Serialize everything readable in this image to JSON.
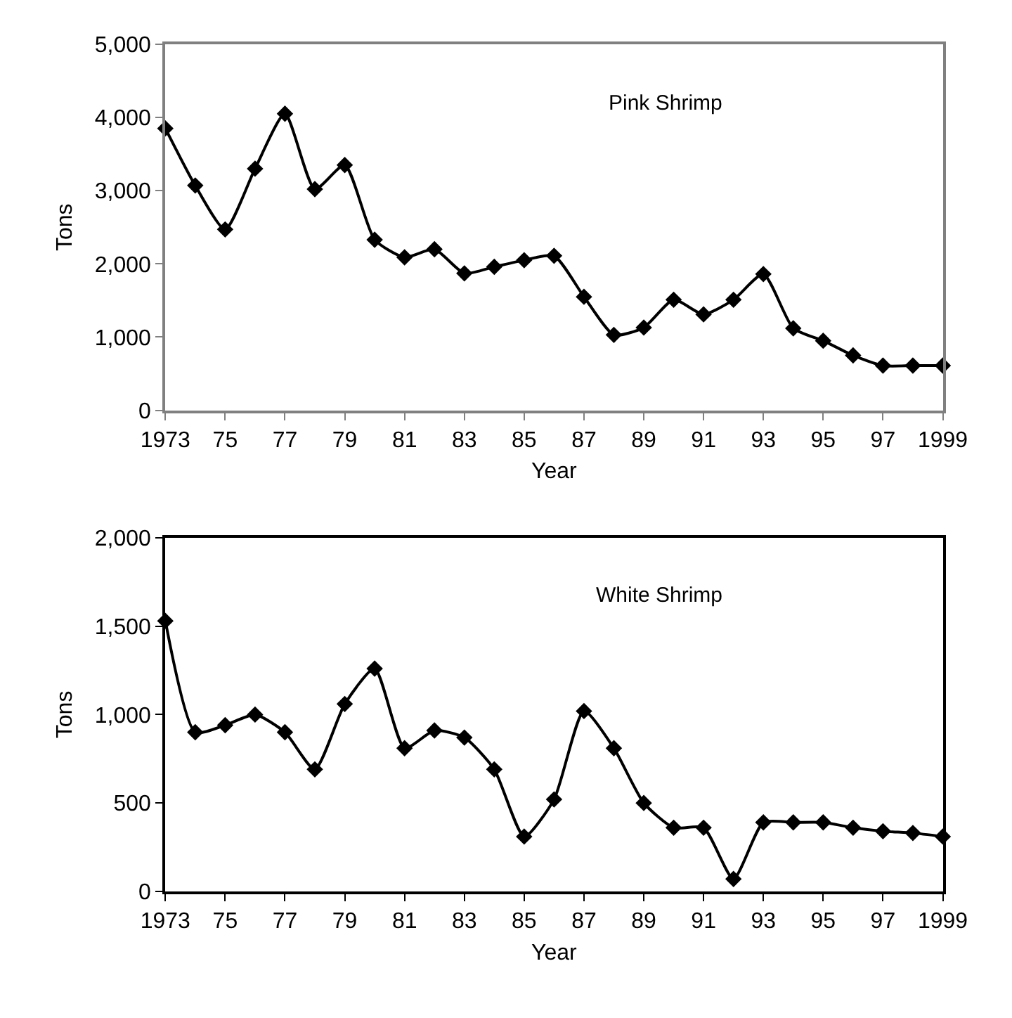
{
  "chart_data": [
    {
      "type": "line",
      "title": "Pink Shrimp",
      "xlabel": "Year",
      "ylabel": "Tons",
      "marker": "diamond",
      "line_style": "solid",
      "x": [
        1973,
        1974,
        1975,
        1976,
        1977,
        1978,
        1979,
        1980,
        1981,
        1982,
        1983,
        1984,
        1985,
        1986,
        1987,
        1988,
        1989,
        1990,
        1991,
        1992,
        1993,
        1994,
        1995,
        1996,
        1997,
        1998,
        1999
      ],
      "series": [
        {
          "color": "#000000",
          "values": [
            3850,
            3070,
            2470,
            3300,
            4050,
            3020,
            3350,
            2330,
            2090,
            2200,
            1870,
            1960,
            2050,
            2110,
            1550,
            1030,
            1130,
            1510,
            1310,
            1510,
            1860,
            1120,
            950,
            750,
            610,
            610,
            610
          ]
        }
      ],
      "xlim": [
        1973,
        1999
      ],
      "xticks": [
        1973,
        {
          "value": 1975,
          "label": "75"
        },
        {
          "value": 1977,
          "label": "77"
        },
        {
          "value": 1979,
          "label": "79"
        },
        {
          "value": 1981,
          "label": "81"
        },
        {
          "value": 1983,
          "label": "83"
        },
        {
          "value": 1985,
          "label": "85"
        },
        {
          "value": 1987,
          "label": "87"
        },
        {
          "value": 1989,
          "label": "89"
        },
        {
          "value": 1991,
          "label": "91"
        },
        {
          "value": 1993,
          "label": "93"
        },
        {
          "value": 1995,
          "label": "95"
        },
        {
          "value": 1997,
          "label": "97"
        },
        1999
      ],
      "ylim": [
        0,
        5000
      ],
      "yticks": [
        0,
        {
          "value": 1000,
          "label": "1,000"
        },
        {
          "value": 2000,
          "label": "2,000"
        },
        {
          "value": 3000,
          "label": "3,000"
        },
        {
          "value": 4000,
          "label": "4,000"
        },
        {
          "value": 5000,
          "label": "5,000"
        }
      ]
    },
    {
      "type": "line",
      "title": "White Shrimp",
      "xlabel": "Year",
      "ylabel": "Tons",
      "marker": "diamond",
      "line_style": "solid",
      "x": [
        1973,
        1974,
        1975,
        1976,
        1977,
        1978,
        1979,
        1980,
        1981,
        1982,
        1983,
        1984,
        1985,
        1986,
        1987,
        1988,
        1989,
        1990,
        1991,
        1992,
        1993,
        1994,
        1995,
        1996,
        1997,
        1998,
        1999
      ],
      "series": [
        {
          "color": "#000000",
          "values": [
            1530,
            900,
            940,
            1000,
            900,
            690,
            1060,
            1260,
            810,
            910,
            870,
            690,
            310,
            520,
            1020,
            810,
            500,
            360,
            360,
            70,
            390,
            390,
            390,
            360,
            340,
            330,
            310
          ]
        }
      ],
      "xlim": [
        1973,
        1999
      ],
      "xticks": [
        1973,
        {
          "value": 1975,
          "label": "75"
        },
        {
          "value": 1977,
          "label": "77"
        },
        {
          "value": 1979,
          "label": "79"
        },
        {
          "value": 1981,
          "label": "81"
        },
        {
          "value": 1983,
          "label": "83"
        },
        {
          "value": 1985,
          "label": "85"
        },
        {
          "value": 1987,
          "label": "87"
        },
        {
          "value": 1989,
          "label": "89"
        },
        {
          "value": 1991,
          "label": "91"
        },
        {
          "value": 1993,
          "label": "93"
        },
        {
          "value": 1995,
          "label": "95"
        },
        {
          "value": 1997,
          "label": "97"
        },
        1999
      ],
      "ylim": [
        0,
        2000
      ],
      "yticks": [
        0,
        {
          "value": 500,
          "label": "500"
        },
        {
          "value": 1000,
          "label": "1,000"
        },
        {
          "value": 1500,
          "label": "1,500"
        },
        {
          "value": 2000,
          "label": "2,000"
        }
      ]
    }
  ]
}
